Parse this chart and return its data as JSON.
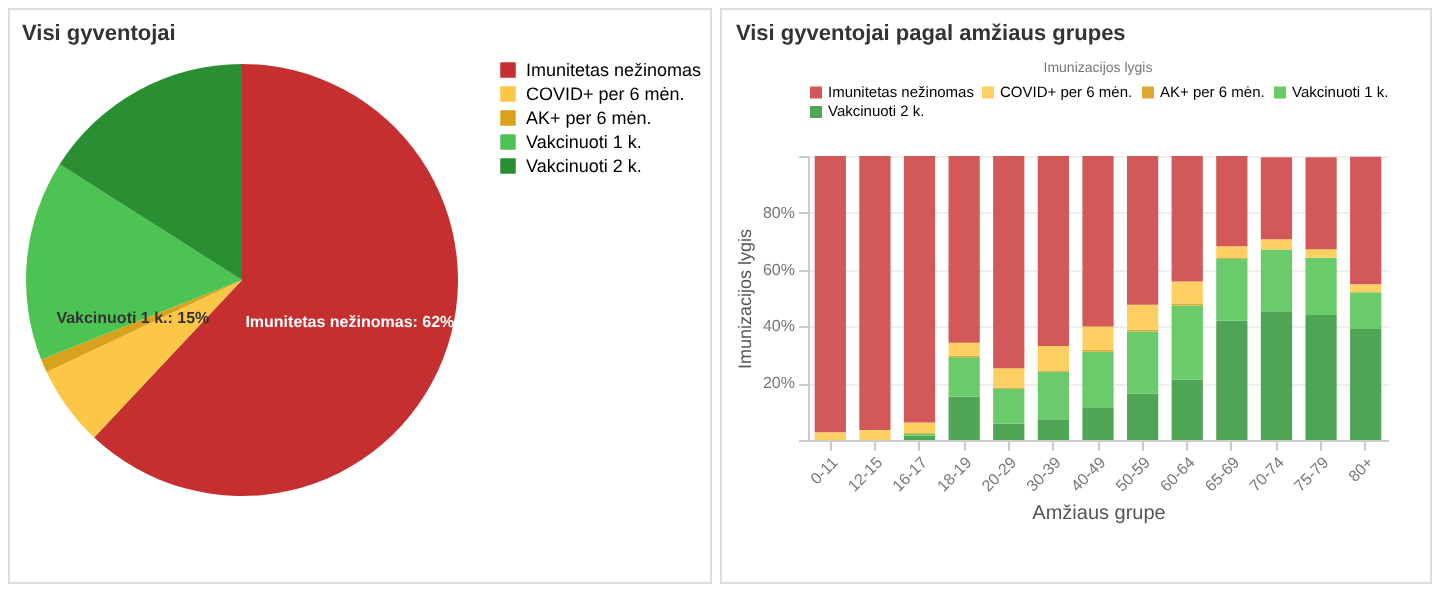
{
  "chart_data": [
    {
      "type": "pie",
      "title": "Visi gyventojai",
      "categories": [
        "Imunitetas nežinomas",
        "COVID+ per 6 mėn.",
        "AK+ per 6 mėn.",
        "Vakcinuoti 1 k.",
        "Vakcinuoti 2 k."
      ],
      "values": [
        62,
        6,
        1,
        15,
        16
      ],
      "colors": [
        "#c62f2f",
        "#fcc647",
        "#d9a21c",
        "#4cc352",
        "#2a8f33"
      ],
      "value_labels": [
        "Imunitetas nežinomas: 62%",
        null,
        null,
        "Vakcinuoti 1 k.: 15%",
        null
      ],
      "legend": "right"
    },
    {
      "type": "bar",
      "title": "Visi gyventojai pagal amžiaus grupes",
      "xlabel": "Amžiaus grupe",
      "ylabel": "Imunizacijos lygis",
      "legend_title": "Imunizacijos lygis",
      "legend": "top",
      "stacked": true,
      "grid": "y",
      "ylim": [
        0,
        100
      ],
      "yticks": [
        {
          "value": 0,
          "label": null
        },
        {
          "value": 20,
          "label": "20%"
        },
        {
          "value": 40,
          "label": "40%"
        },
        {
          "value": 60,
          "label": "60%"
        },
        {
          "value": 80,
          "label": "80%"
        },
        {
          "value": 100,
          "label": null
        }
      ],
      "categories": [
        "0-11",
        "12-15",
        "16-17",
        "18-19",
        "20-29",
        "30-39",
        "40-49",
        "50-59",
        "60-64",
        "65-69",
        "70-74",
        "75-79",
        "80+"
      ],
      "series": [
        {
          "name": "Vakcinuoti 2 k.",
          "color": "#4ea553",
          "values": [
            0,
            0,
            1.5,
            15.3,
            5.8,
            7.3,
            11.3,
            16.4,
            21.3,
            42,
            45.3,
            44,
            39.1
          ]
        },
        {
          "name": "Vakcinuoti 1 k.",
          "color": "#6acb6b",
          "values": [
            0,
            0,
            0.7,
            13.8,
            12.2,
            16.7,
            19.8,
            21.8,
            26,
            21.8,
            21.8,
            20.2,
            12.9
          ]
        },
        {
          "name": "AK+ per 6 mėn.",
          "color": "#dcaa33",
          "values": [
            0,
            0,
            0.3,
            0.5,
            0.4,
            0.5,
            0.6,
            0.7,
            0.8,
            0.5,
            null,
            null,
            null
          ]
        },
        {
          "name": "COVID+ per 6 mėn.",
          "color": "#fdd061",
          "values": [
            2.7,
            3.5,
            3.7,
            4.6,
            6.9,
            8.6,
            8.3,
            8.7,
            7.7,
            3.9,
            3.6,
            3,
            2.8
          ]
        },
        {
          "name": "Imunitetas nežinomas",
          "color": "#d35858",
          "values": [
            97.3,
            96.5,
            93.8,
            65.8,
            74.7,
            66.9,
            60,
            52.4,
            44.2,
            31.8,
            28.9,
            32.4,
            44.9
          ]
        }
      ]
    }
  ]
}
